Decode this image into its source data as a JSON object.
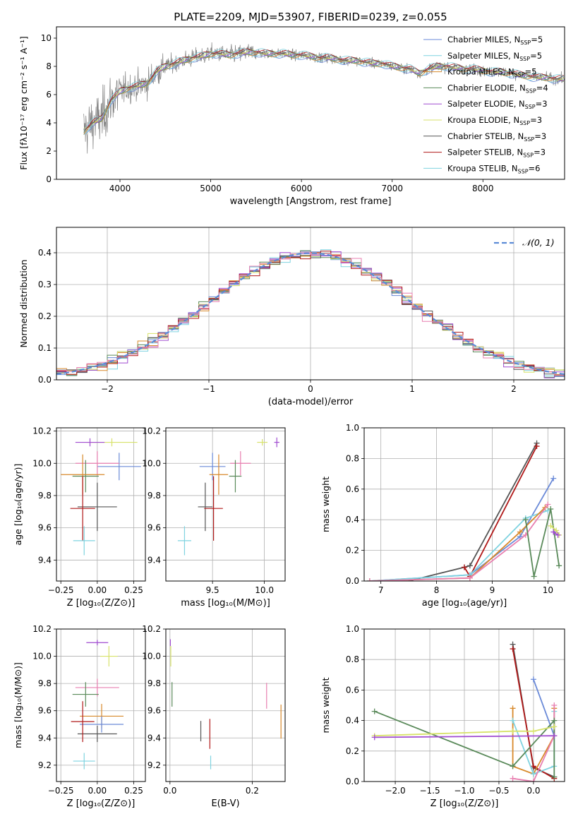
{
  "title": "PLATE=2209, MJD=53907, FIBERID=0239, z=0.055",
  "colors": {
    "c1": "#6a8ad8",
    "c2": "#7fd3e0",
    "c3": "#d8892b",
    "c4": "#5a8a5a",
    "c5": "#a04bd0",
    "c6": "#d7e26a",
    "c7": "#555555",
    "c8": "#b01818",
    "c9": "#e87fb0",
    "obs": "#808080",
    "teal": "#40a0a0"
  },
  "chart_data": [
    {
      "id": "spectrum",
      "type": "line",
      "title": "PLATE=2209, MJD=53907, FIBERID=0239, z=0.055",
      "xlabel": "wavelength [Angstrom, rest frame]",
      "ylabel": "Flux [fλ10⁻¹⁷ erg cm⁻² s⁻¹ A⁻¹]",
      "xlim": [
        3300,
        8900
      ],
      "ylim": [
        0,
        10.8
      ],
      "xticks": [
        4000,
        5000,
        6000,
        7000,
        8000
      ],
      "yticks": [
        0,
        2,
        4,
        6,
        8,
        10
      ],
      "xticklabels": [
        "4000",
        "5000",
        "6000",
        "7000",
        "8000"
      ],
      "yticklabels": [
        "0",
        "2",
        "4",
        "6",
        "8",
        "10"
      ],
      "legend_position": "top-right",
      "legend": [
        {
          "name": "Chabrier MILES, N",
          "sub": "SSP",
          "suffix": "=5",
          "color": "#6a8ad8"
        },
        {
          "name": "Salpeter MILES, N",
          "sub": "SSP",
          "suffix": "=5",
          "color": "#7fd3e0"
        },
        {
          "name": "Kroupa MILES, N",
          "sub": "SSP",
          "suffix": "=5",
          "color": "#d8892b"
        },
        {
          "name": "Chabrier ELODIE, N",
          "sub": "SSP",
          "suffix": "=4",
          "color": "#5a8a5a"
        },
        {
          "name": "Salpeter ELODIE, N",
          "sub": "SSP",
          "suffix": "=3",
          "color": "#a04bd0"
        },
        {
          "name": "Kroupa ELODIE, N",
          "sub": "SSP",
          "suffix": "=3",
          "color": "#d7e26a"
        },
        {
          "name": "Chabrier STELIB, N",
          "sub": "SSP",
          "suffix": "=3",
          "color": "#555555"
        },
        {
          "name": "Salpeter STELIB, N",
          "sub": "SSP",
          "suffix": "=3",
          "color": "#b01818"
        },
        {
          "name": "Kroupa STELIB, N",
          "sub": "SSP",
          "suffix": "=6",
          "color": "#7fd3e0"
        }
      ],
      "continuum": [
        [
          3600,
          3.4
        ],
        [
          3700,
          4.0
        ],
        [
          3800,
          4.3
        ],
        [
          3900,
          5.6
        ],
        [
          4000,
          6.2
        ],
        [
          4100,
          6.5
        ],
        [
          4200,
          6.6
        ],
        [
          4300,
          6.8
        ],
        [
          4400,
          7.6
        ],
        [
          4500,
          8.0
        ],
        [
          4600,
          8.2
        ],
        [
          4700,
          8.4
        ],
        [
          4800,
          8.6
        ],
        [
          4900,
          8.7
        ],
        [
          5000,
          8.9
        ],
        [
          5100,
          8.9
        ],
        [
          5200,
          8.8
        ],
        [
          5300,
          8.9
        ],
        [
          5400,
          9.0
        ],
        [
          5500,
          9.0
        ],
        [
          5600,
          8.9
        ],
        [
          5700,
          8.9
        ],
        [
          5800,
          8.9
        ],
        [
          5900,
          8.8
        ],
        [
          6000,
          8.8
        ],
        [
          6100,
          8.7
        ],
        [
          6200,
          8.6
        ],
        [
          6300,
          8.6
        ],
        [
          6400,
          8.5
        ],
        [
          6500,
          8.4
        ],
        [
          6600,
          8.4
        ],
        [
          6700,
          8.3
        ],
        [
          6800,
          8.2
        ],
        [
          6900,
          8.2
        ],
        [
          7000,
          8.0
        ],
        [
          7100,
          7.9
        ],
        [
          7200,
          7.8
        ],
        [
          7300,
          7.5
        ],
        [
          7400,
          7.8
        ],
        [
          7500,
          8.0
        ],
        [
          7600,
          8.0
        ],
        [
          7700,
          7.9
        ],
        [
          7800,
          7.8
        ],
        [
          7900,
          7.8
        ],
        [
          8000,
          7.7
        ],
        [
          8100,
          7.6
        ],
        [
          8200,
          7.6
        ],
        [
          8300,
          7.5
        ],
        [
          8400,
          7.4
        ],
        [
          8500,
          7.3
        ],
        [
          8600,
          7.2
        ],
        [
          8700,
          7.2
        ],
        [
          8800,
          7.1
        ]
      ]
    },
    {
      "id": "residuals",
      "type": "histogram",
      "xlabel": "(data-model)/error",
      "ylabel": "Normed distribution",
      "xlim": [
        -2.5,
        2.5
      ],
      "ylim": [
        0,
        0.48
      ],
      "xticks": [
        -2,
        -1,
        0,
        1,
        2
      ],
      "yticks": [
        0.0,
        0.1,
        0.2,
        0.3,
        0.4
      ],
      "xticklabels": [
        "−2",
        "−1",
        "0",
        "1",
        "2"
      ],
      "yticklabels": [
        "0.0",
        "0.1",
        "0.2",
        "0.3",
        "0.4"
      ],
      "grid": true,
      "legend_position": "top-right",
      "reference_label": "𝒩(0, 1)",
      "reference": "normal(0,1)",
      "bin_width": 0.1
    },
    {
      "id": "age_vs_Z",
      "type": "scatter",
      "xlabel": "Z [log₁₀(Z/Z⊙)]",
      "ylabel": "age  [log₁₀(age/yr)]",
      "xlim": [
        -0.28,
        0.33
      ],
      "ylim": [
        9.27,
        10.22
      ],
      "xticks": [
        -0.25,
        0.0,
        0.25
      ],
      "yticks": [
        9.4,
        9.6,
        9.8,
        10.0,
        10.2
      ],
      "xticklabels": [
        "−0.25",
        "0.00",
        "0.25"
      ],
      "yticklabels": [
        "9.4",
        "9.6",
        "9.8",
        "10.0",
        "10.2"
      ],
      "grid": true,
      "points": [
        {
          "x": 0.15,
          "xe": 0.3,
          "y": 9.98,
          "ye": 0.17,
          "color": "#6a8ad8"
        },
        {
          "x": 0.1,
          "xe": 0.35,
          "y": 10.13,
          "ye": 0.05,
          "color": "#d7e26a"
        },
        {
          "x": -0.05,
          "xe": 0.2,
          "y": 10.13,
          "ye": 0.05,
          "color": "#a04bd0"
        },
        {
          "x": 0.0,
          "xe": 0.3,
          "y": 10.0,
          "ye": 0.15,
          "color": "#e87fb0"
        },
        {
          "x": -0.08,
          "xe": 0.18,
          "y": 9.92,
          "ye": 0.2,
          "color": "#5a8a5a"
        },
        {
          "x": -0.1,
          "xe": 0.3,
          "y": 9.93,
          "ye": 0.25,
          "color": "#d8892b"
        },
        {
          "x": 0.0,
          "xe": 0.27,
          "y": 9.73,
          "ye": 0.3,
          "color": "#555555"
        },
        {
          "x": -0.1,
          "xe": 0.17,
          "y": 9.72,
          "ye": 0.4,
          "color": "#b01818"
        },
        {
          "x": -0.09,
          "xe": 0.15,
          "y": 9.52,
          "ye": 0.18,
          "color": "#7fd3e0"
        }
      ]
    },
    {
      "id": "age_vs_mass",
      "type": "scatter",
      "xlabel": "mass [log₁₀(M/M⊙)]",
      "ylabel": "",
      "xlim": [
        9.05,
        10.2
      ],
      "ylim": [
        9.27,
        10.22
      ],
      "xticks": [
        9.5,
        10.0
      ],
      "yticks": [
        9.4,
        9.6,
        9.8,
        10.0,
        10.2
      ],
      "xticklabels": [
        "9.5",
        "10.0"
      ],
      "yticklabels": [
        "9.4",
        "9.6",
        "9.8",
        "10.0",
        "10.2"
      ],
      "grid": true,
      "points": [
        {
          "x": 9.98,
          "xe": 0.1,
          "y": 10.13,
          "ye": 0.04,
          "color": "#d7e26a"
        },
        {
          "x": 10.12,
          "xe": 0.05,
          "y": 10.13,
          "ye": 0.06,
          "color": "#a04bd0"
        },
        {
          "x": 9.5,
          "xe": 0.25,
          "y": 9.98,
          "ye": 0.17,
          "color": "#6a8ad8"
        },
        {
          "x": 9.77,
          "xe": 0.2,
          "y": 10.0,
          "ye": 0.15,
          "color": "#e87fb0"
        },
        {
          "x": 9.72,
          "xe": 0.12,
          "y": 9.92,
          "ye": 0.2,
          "color": "#5a8a5a"
        },
        {
          "x": 9.56,
          "xe": 0.18,
          "y": 9.93,
          "ye": 0.25,
          "color": "#d8892b"
        },
        {
          "x": 9.43,
          "xe": 0.14,
          "y": 9.73,
          "ye": 0.3,
          "color": "#555555"
        },
        {
          "x": 9.51,
          "xe": 0.18,
          "y": 9.72,
          "ye": 0.4,
          "color": "#b01818"
        },
        {
          "x": 9.23,
          "xe": 0.13,
          "y": 9.52,
          "ye": 0.18,
          "color": "#7fd3e0"
        }
      ]
    },
    {
      "id": "weight_vs_age",
      "type": "line",
      "xlabel": "age  [log₁₀(age/yr)]",
      "ylabel": "mass weight",
      "xlim": [
        6.7,
        10.3
      ],
      "ylim": [
        0,
        1.0
      ],
      "xticks": [
        7,
        8,
        9,
        10
      ],
      "yticks": [
        0.0,
        0.2,
        0.4,
        0.6,
        0.8,
        1.0
      ],
      "xticklabels": [
        "7",
        "8",
        "9",
        "10"
      ],
      "yticklabels": [
        "0.0",
        "0.2",
        "0.4",
        "0.6",
        "0.8",
        "1.0"
      ],
      "grid": true,
      "series": [
        {
          "color": "#555555",
          "x": [
            7.5,
            8.5,
            8.6,
            9.8
          ],
          "y": [
            0.0,
            0.09,
            0.1,
            0.9
          ]
        },
        {
          "color": "#b01818",
          "x": [
            8.5,
            8.6,
            9.8
          ],
          "y": [
            0.09,
            0.03,
            0.88
          ]
        },
        {
          "color": "#6a8ad8",
          "x": [
            6.8,
            8.6,
            9.5,
            10.1
          ],
          "y": [
            0.0,
            0.04,
            0.29,
            0.67
          ]
        },
        {
          "color": "#7fd3e0",
          "x": [
            6.8,
            8.6,
            9.6,
            10.0
          ],
          "y": [
            0.0,
            0.04,
            0.41,
            0.46
          ]
        },
        {
          "color": "#d8892b",
          "x": [
            6.8,
            8.6,
            9.5,
            9.95
          ],
          "y": [
            0.0,
            0.02,
            0.32,
            0.48
          ]
        },
        {
          "color": "#e87fb0",
          "x": [
            6.8,
            8.6,
            9.6,
            10.0
          ],
          "y": [
            0.0,
            0.02,
            0.3,
            0.5
          ]
        },
        {
          "color": "#5a8a5a",
          "x": [
            9.6,
            9.75,
            10.05,
            10.2
          ],
          "y": [
            0.4,
            0.03,
            0.47,
            0.1
          ]
        },
        {
          "color": "#d7e26a",
          "x": [
            10.05,
            10.15,
            10.2
          ],
          "y": [
            0.36,
            0.33,
            0.3
          ]
        },
        {
          "color": "#a04bd0",
          "x": [
            10.1,
            10.18
          ],
          "y": [
            0.32,
            0.3
          ]
        }
      ]
    },
    {
      "id": "mass_vs_Z",
      "type": "scatter",
      "xlabel": "Z [log₁₀(Z/Z⊙)]",
      "ylabel": "mass [log₁₀(M/M⊙)]",
      "xlim": [
        -0.28,
        0.33
      ],
      "ylim": [
        9.08,
        10.2
      ],
      "xticks": [
        -0.25,
        0.0,
        0.25
      ],
      "yticks": [
        9.2,
        9.4,
        9.6,
        9.8,
        10.0,
        10.2
      ],
      "xticklabels": [
        "−0.25",
        "0.00",
        "0.25"
      ],
      "yticklabels": [
        "9.2",
        "9.4",
        "9.6",
        "9.8",
        "10.0",
        "10.2"
      ],
      "grid": true,
      "points": [
        {
          "x": 0.0,
          "xe": 0.15,
          "y": 10.1,
          "ye": 0.04,
          "color": "#a04bd0"
        },
        {
          "x": 0.08,
          "xe": 0.12,
          "y": 10.0,
          "ye": 0.15,
          "color": "#d7e26a"
        },
        {
          "x": 0.0,
          "xe": 0.3,
          "y": 9.77,
          "ye": 0.13,
          "color": "#e87fb0"
        },
        {
          "x": -0.08,
          "xe": 0.18,
          "y": 9.72,
          "ye": 0.18,
          "color": "#5a8a5a"
        },
        {
          "x": 0.03,
          "xe": 0.3,
          "y": 9.56,
          "ye": 0.18,
          "color": "#d8892b"
        },
        {
          "x": 0.03,
          "xe": 0.3,
          "y": 9.5,
          "ye": 0.12,
          "color": "#6a8ad8"
        },
        {
          "x": 0.0,
          "xe": 0.27,
          "y": 9.43,
          "ye": 0.12,
          "color": "#555555"
        },
        {
          "x": -0.1,
          "xe": 0.16,
          "y": 9.52,
          "ye": 0.3,
          "color": "#b01818"
        },
        {
          "x": -0.09,
          "xe": 0.15,
          "y": 9.23,
          "ye": 0.12,
          "color": "#7fd3e0"
        }
      ]
    },
    {
      "id": "mass_vs_ebv",
      "type": "scatter",
      "xlabel": "E(B-V)",
      "ylabel": "",
      "xlim": [
        -0.01,
        0.28
      ],
      "ylim": [
        9.08,
        10.2
      ],
      "xticks": [
        0.0,
        0.2
      ],
      "yticks": [
        9.2,
        9.4,
        9.6,
        9.8,
        10.0,
        10.2
      ],
      "xticklabels": [
        "0.0",
        "0.2"
      ],
      "yticklabels": [
        "9.2",
        "9.4",
        "9.6",
        "9.8",
        "10.0",
        "10.2"
      ],
      "grid": true,
      "points": [
        {
          "x": 0.001,
          "xe": 0,
          "y": 10.1,
          "ye": 0.05,
          "color": "#a04bd0"
        },
        {
          "x": 0.002,
          "xe": 0,
          "y": 10.0,
          "ye": 0.15,
          "color": "#d7e26a"
        },
        {
          "x": 0.005,
          "xe": 0,
          "y": 9.72,
          "ye": 0.18,
          "color": "#5a8a5a"
        },
        {
          "x": 0.075,
          "xe": 0,
          "y": 9.45,
          "ye": 0.15,
          "color": "#555555"
        },
        {
          "x": 0.097,
          "xe": 0,
          "y": 9.43,
          "ye": 0.22,
          "color": "#b01818"
        },
        {
          "x": 0.099,
          "xe": 0,
          "y": 9.22,
          "ye": 0.1,
          "color": "#7fd3e0"
        },
        {
          "x": 0.235,
          "xe": 0,
          "y": 9.71,
          "ye": 0.19,
          "color": "#e87fb0"
        },
        {
          "x": 0.27,
          "xe": 0,
          "y": 9.52,
          "ye": 0.25,
          "color": "#d8892b"
        }
      ]
    },
    {
      "id": "weight_vs_Z",
      "type": "line",
      "xlabel": "Z [log₁₀(Z/Z⊙)]",
      "ylabel": "mass weight",
      "xlim": [
        -2.45,
        0.45
      ],
      "ylim": [
        0,
        1.0
      ],
      "xticks": [
        -2.0,
        -1.5,
        -1.0,
        -0.5,
        0.0
      ],
      "yticks": [
        0.0,
        0.2,
        0.4,
        0.6,
        0.8,
        1.0
      ],
      "xticklabels": [
        "−2.0",
        "−1.5",
        "−1.0",
        "−0.5",
        "0.0"
      ],
      "yticklabels": [
        "0.0",
        "0.2",
        "0.4",
        "0.6",
        "0.8",
        "1.0"
      ],
      "grid": true,
      "series": [
        {
          "color": "#555555",
          "x": [
            -0.3,
            0.0,
            0.3
          ],
          "y": [
            0.9,
            0.09,
            0.03
          ]
        },
        {
          "color": "#b01818",
          "x": [
            -0.3,
            0.0,
            0.3
          ],
          "y": [
            0.87,
            0.1,
            0.02
          ]
        },
        {
          "color": "#6a8ad8",
          "x": [
            0.0,
            0.3
          ],
          "y": [
            0.67,
            0.3
          ]
        },
        {
          "color": "#d8892b",
          "x": [
            -0.3,
            -0.3,
            0.0,
            0.3,
            0.3
          ],
          "y": [
            0.48,
            0.1,
            0.05,
            0.3,
            0.48
          ]
        },
        {
          "color": "#7fd3e0",
          "x": [
            -0.3,
            0.0,
            0.3,
            0.3
          ],
          "y": [
            0.4,
            0.05,
            0.1,
            0.46
          ]
        },
        {
          "color": "#e87fb0",
          "x": [
            -0.3,
            0.0,
            0.3,
            0.3
          ],
          "y": [
            0.02,
            0.0,
            0.3,
            0.5
          ]
        },
        {
          "color": "#5a8a5a",
          "x": [
            -2.3,
            -0.3,
            0.3,
            0.3
          ],
          "y": [
            0.46,
            0.1,
            0.4,
            0.03
          ]
        },
        {
          "color": "#d7e26a",
          "x": [
            -2.3,
            -0.3,
            0.0,
            0.3
          ],
          "y": [
            0.3,
            0.33,
            0.33,
            0.36
          ]
        },
        {
          "color": "#a04bd0",
          "x": [
            -2.3,
            0.3
          ],
          "y": [
            0.29,
            0.3
          ]
        }
      ]
    }
  ]
}
